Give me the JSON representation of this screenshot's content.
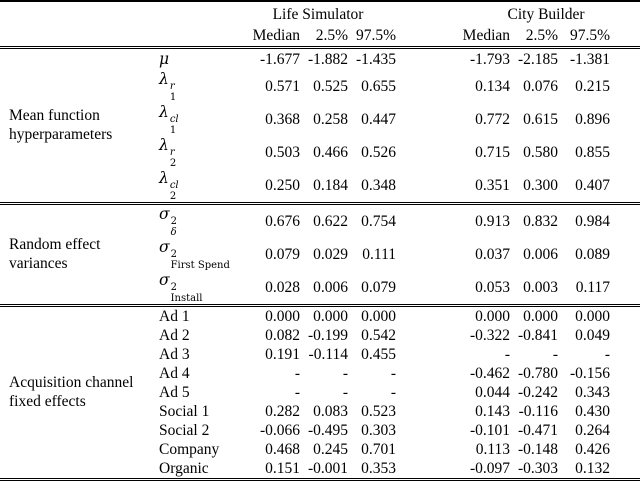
{
  "page": {
    "background": "#ffffff",
    "text_color": "#000000",
    "rule_color": "#000000"
  },
  "table": {
    "col_groups": [
      {
        "label": "Life Simulator",
        "columns": [
          "Median",
          "2.5%",
          "97.5%"
        ]
      },
      {
        "label": "City Builder",
        "columns": [
          "Median",
          "2.5%",
          "97.5%"
        ]
      }
    ],
    "row_groups": [
      {
        "label": "Mean function hyperparameters",
        "rows": [
          {
            "param": {
              "base": "μ"
            },
            "values": [
              "-1.677",
              "-1.882",
              "-1.435",
              "-1.793",
              "-2.185",
              "-1.381"
            ]
          },
          {
            "param": {
              "base": "λ",
              "sup": "r",
              "sub": "1",
              "sup_italic": true,
              "sub_italic": false
            },
            "values": [
              "0.571",
              "0.525",
              "0.655",
              "0.134",
              "0.076",
              "0.215"
            ]
          },
          {
            "param": {
              "base": "λ",
              "sup": "cl",
              "sub": "1",
              "sup_italic": true,
              "sub_italic": false
            },
            "values": [
              "0.368",
              "0.258",
              "0.447",
              "0.772",
              "0.615",
              "0.896"
            ]
          },
          {
            "param": {
              "base": "λ",
              "sup": "r",
              "sub": "2",
              "sup_italic": true,
              "sub_italic": false
            },
            "values": [
              "0.503",
              "0.466",
              "0.526",
              "0.715",
              "0.580",
              "0.855"
            ]
          },
          {
            "param": {
              "base": "λ",
              "sup": "cl",
              "sub": "2",
              "sup_italic": true,
              "sub_italic": false
            },
            "values": [
              "0.250",
              "0.184",
              "0.348",
              "0.351",
              "0.300",
              "0.407"
            ]
          }
        ]
      },
      {
        "label": "Random effect variances",
        "rows": [
          {
            "param": {
              "base": "σ",
              "sup": "2",
              "sub": "δ",
              "sup_italic": false,
              "sub_italic": true
            },
            "values": [
              "0.676",
              "0.622",
              "0.754",
              "0.913",
              "0.832",
              "0.984"
            ]
          },
          {
            "param": {
              "base": "σ",
              "sup": "2",
              "sub": "First Spend",
              "sup_italic": false,
              "sub_italic": false
            },
            "values": [
              "0.079",
              "0.029",
              "0.111",
              "0.037",
              "0.006",
              "0.089"
            ]
          },
          {
            "param": {
              "base": "σ",
              "sup": "2",
              "sub": "Install",
              "sup_italic": false,
              "sub_italic": false
            },
            "values": [
              "0.028",
              "0.006",
              "0.079",
              "0.053",
              "0.003",
              "0.117"
            ]
          }
        ]
      },
      {
        "label": "Acquisition channel fixed effects",
        "rows": [
          {
            "param": {
              "text": "Ad 1"
            },
            "values": [
              "0.000",
              "0.000",
              "0.000",
              "0.000",
              "0.000",
              "0.000"
            ]
          },
          {
            "param": {
              "text": "Ad 2"
            },
            "values": [
              "0.082",
              "-0.199",
              "0.542",
              "-0.322",
              "-0.841",
              "0.049"
            ]
          },
          {
            "param": {
              "text": "Ad 3"
            },
            "values": [
              "0.191",
              "-0.114",
              "0.455",
              "-",
              "-",
              "-"
            ]
          },
          {
            "param": {
              "text": "Ad 4"
            },
            "values": [
              "-",
              "-",
              "-",
              "-0.462",
              "-0.780",
              "-0.156"
            ]
          },
          {
            "param": {
              "text": "Ad 5"
            },
            "values": [
              "-",
              "-",
              "-",
              "0.044",
              "-0.242",
              "0.343"
            ]
          },
          {
            "param": {
              "text": "Social 1"
            },
            "values": [
              "0.282",
              "0.083",
              "0.523",
              "0.143",
              "-0.116",
              "0.430"
            ]
          },
          {
            "param": {
              "text": "Social 2"
            },
            "values": [
              "-0.066",
              "-0.495",
              "0.303",
              "-0.101",
              "-0.471",
              "0.264"
            ]
          },
          {
            "param": {
              "text": "Company"
            },
            "values": [
              "0.468",
              "0.245",
              "0.701",
              "0.113",
              "-0.148",
              "0.426"
            ]
          },
          {
            "param": {
              "text": "Organic"
            },
            "values": [
              "0.151",
              "-0.001",
              "0.353",
              "-0.097",
              "-0.303",
              "0.132"
            ]
          }
        ]
      }
    ]
  }
}
